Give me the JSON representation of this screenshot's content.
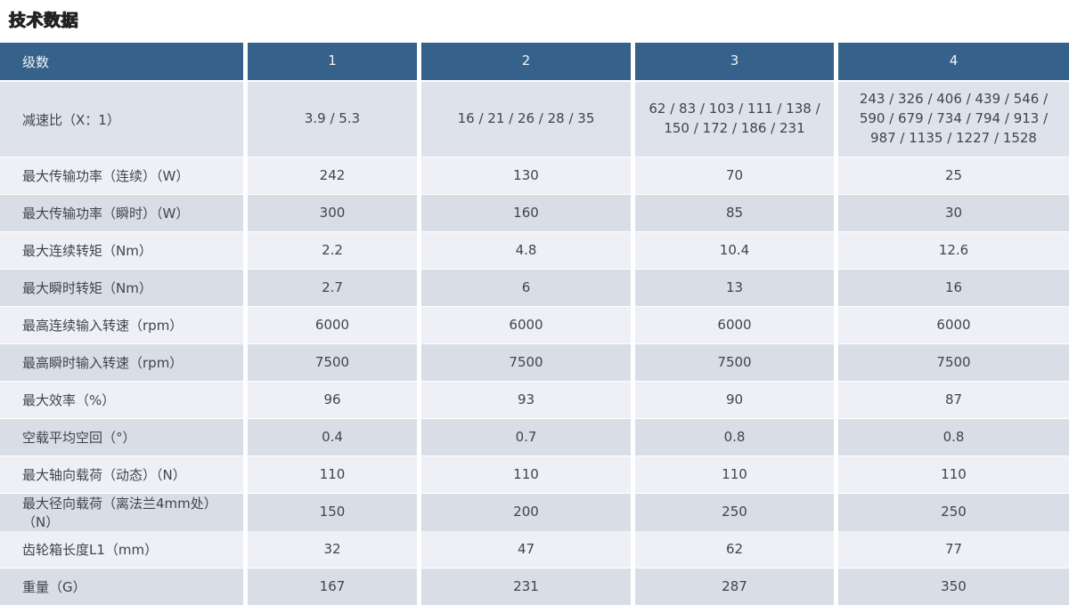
{
  "title": "技术数据",
  "colors": {
    "header_bg": "#35618a",
    "header_text": "#f2f4f7",
    "row_light": "#eef0f6",
    "row_dark": "#d9dee6",
    "row_ratio": "#dee2ea",
    "cell_text": "#3f454d",
    "title_text": "#232323"
  },
  "table": {
    "header": [
      "级数",
      "1",
      "2",
      "3",
      "4"
    ],
    "rows": [
      {
        "label": "减速比（X：1）",
        "values": [
          "3.9 / 5.3",
          "16 / 21 / 26 / 28 / 35",
          "62 / 83 / 103 / 111 / 138 / 150 / 172 / 186 / 231",
          "243 / 326 / 406 / 439 / 546 / 590 / 679 / 734 / 794 / 913 / 987 / 1135 / 1227 / 1528"
        ]
      },
      {
        "label": "最大传输功率（连续）（W）",
        "values": [
          "242",
          "130",
          "70",
          "25"
        ]
      },
      {
        "label": "最大传输功率（瞬时）（W）",
        "values": [
          "300",
          "160",
          "85",
          "30"
        ]
      },
      {
        "label": "最大连续转矩（Nm）",
        "values": [
          "2.2",
          "4.8",
          "10.4",
          "12.6"
        ]
      },
      {
        "label": "最大瞬时转矩（Nm）",
        "values": [
          "2.7",
          "6",
          "13",
          "16"
        ]
      },
      {
        "label": "最高连续输入转速（rpm）",
        "values": [
          "6000",
          "6000",
          "6000",
          "6000"
        ]
      },
      {
        "label": "最高瞬时输入转速（rpm）",
        "values": [
          "7500",
          "7500",
          "7500",
          "7500"
        ]
      },
      {
        "label": "最大效率（%）",
        "values": [
          "96",
          "93",
          "90",
          "87"
        ]
      },
      {
        "label": "空载平均空回（°）",
        "values": [
          "0.4",
          "0.7",
          "0.8",
          "0.8"
        ]
      },
      {
        "label": "最大轴向载荷（动态）（N）",
        "values": [
          "110",
          "110",
          "110",
          "110"
        ]
      },
      {
        "label": "最大径向载荷（离法兰4mm处）（N）",
        "values": [
          "150",
          "200",
          "250",
          "250"
        ]
      },
      {
        "label": "齿轮箱长度L1（mm）",
        "values": [
          "32",
          "47",
          "62",
          "77"
        ]
      },
      {
        "label": "重量（G）",
        "values": [
          "167",
          "231",
          "287",
          "350"
        ]
      }
    ]
  }
}
